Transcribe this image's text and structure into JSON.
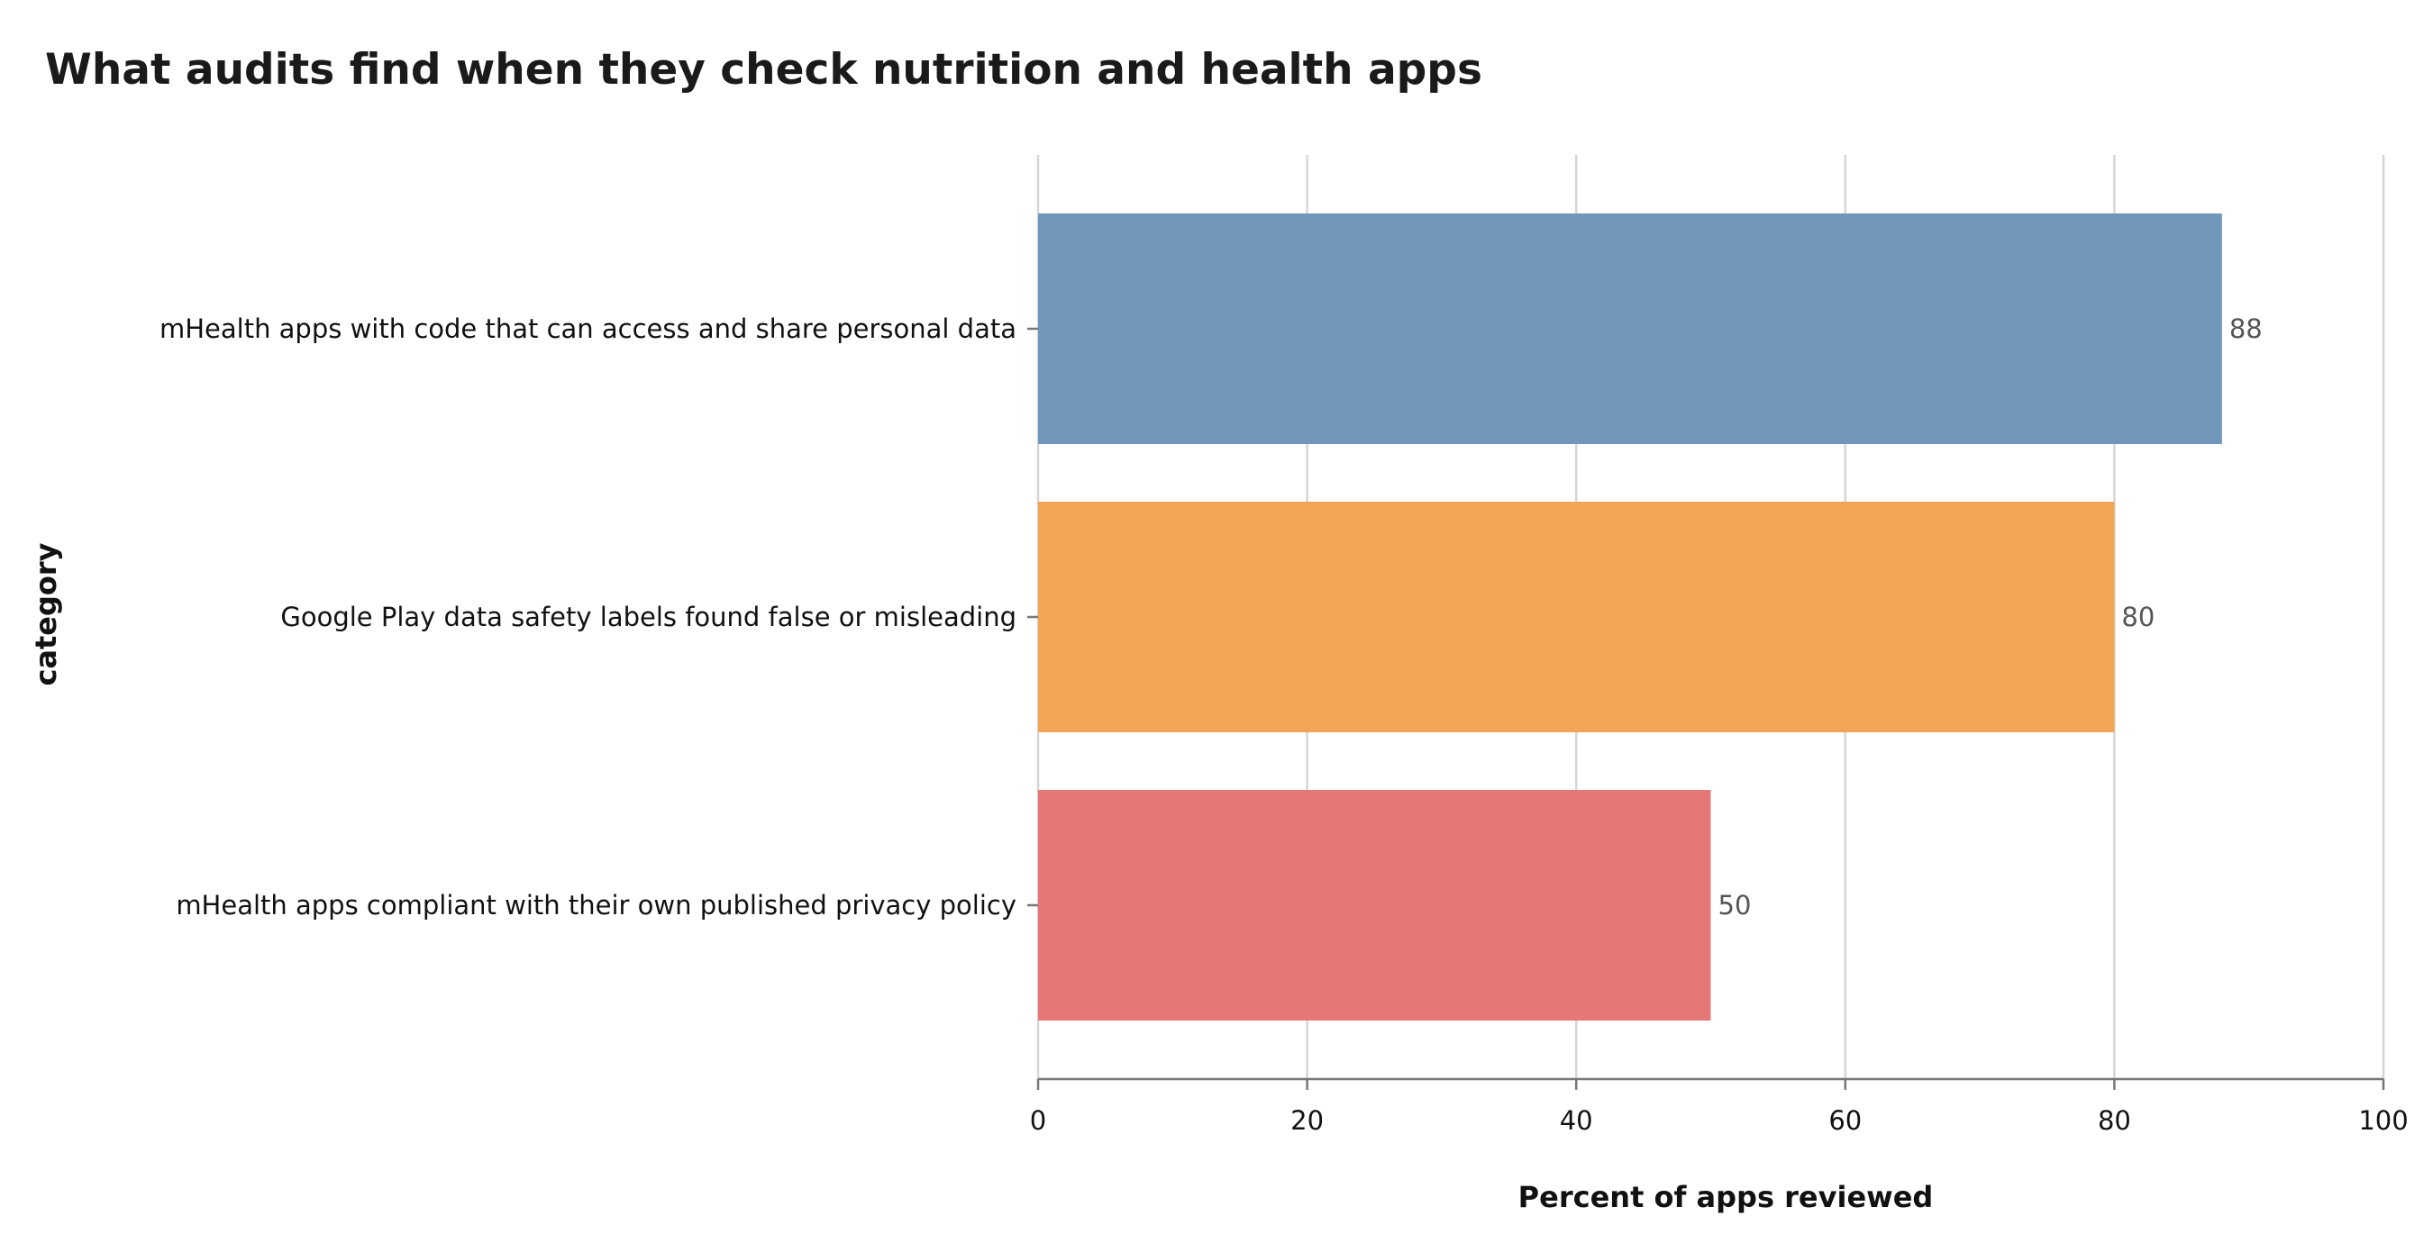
{
  "chart_data": {
    "type": "bar",
    "orientation": "horizontal",
    "title": "What audits find when they check nutrition and health apps",
    "xlabel": "Percent of apps reviewed",
    "ylabel": "category",
    "xlim": [
      0,
      100
    ],
    "xticks": [
      0,
      20,
      40,
      60,
      80,
      100
    ],
    "grid": true,
    "categories": [
      "mHealth apps with code that can access and share personal data",
      "Google Play data safety labels found false or misleading",
      "mHealth apps compliant with their own published privacy policy"
    ],
    "values": [
      88,
      80,
      50
    ],
    "colors": [
      "#7096b9",
      "#f2a555",
      "#e67777"
    ]
  }
}
